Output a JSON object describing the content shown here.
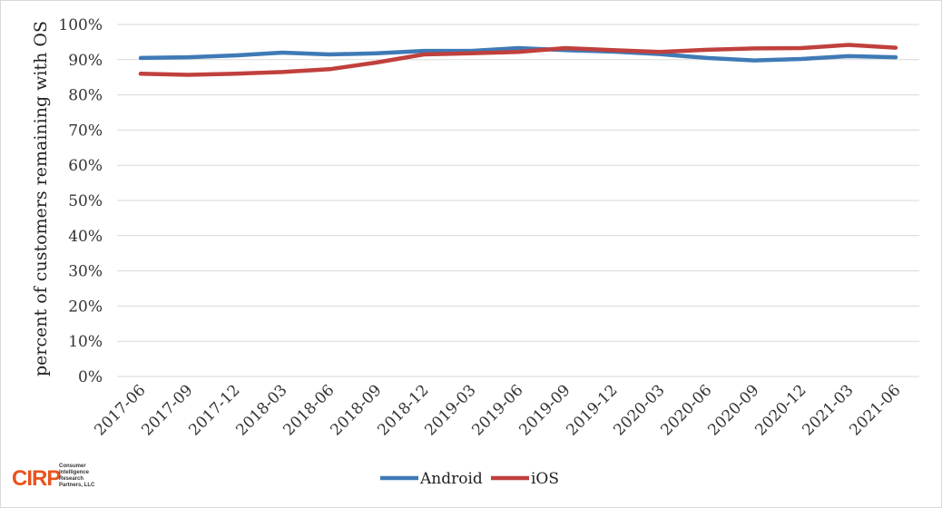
{
  "chart_data": {
    "type": "line",
    "title": "",
    "xlabel": "",
    "ylabel": "percent of customers remaining with OS",
    "ylim": [
      0,
      100
    ],
    "yticks": [
      "100%",
      "90%",
      "80%",
      "70%",
      "60%",
      "50%",
      "40%",
      "30%",
      "20%",
      "10%",
      "0%"
    ],
    "ytick_values": [
      100,
      90,
      80,
      70,
      60,
      50,
      40,
      30,
      20,
      10,
      0
    ],
    "categories": [
      "2017-06",
      "2017-09",
      "2017-12",
      "2018-03",
      "2018-06",
      "2018-09",
      "2018-12",
      "2019-03",
      "2019-06",
      "2019-09",
      "2019-12",
      "2020-03",
      "2020-06",
      "2020-09",
      "2020-12",
      "2021-03",
      "2021-06"
    ],
    "grid": true,
    "legend_position": "bottom-center",
    "series": [
      {
        "name": "Android",
        "color": "#3f7ab6",
        "values": [
          90.5,
          90.7,
          91.2,
          92.0,
          91.5,
          91.8,
          92.5,
          92.5,
          93.3,
          92.7,
          92.3,
          91.6,
          90.5,
          89.8,
          90.2,
          91.0,
          90.7
        ]
      },
      {
        "name": "iOS",
        "color": "#c0403d",
        "values": [
          86.0,
          85.7,
          86.0,
          86.5,
          87.3,
          89.2,
          91.5,
          91.8,
          92.2,
          93.3,
          92.7,
          92.2,
          92.8,
          93.2,
          93.3,
          94.2,
          93.4
        ]
      }
    ]
  },
  "logo": {
    "text": "CIRP",
    "subtext": [
      "Consumer",
      "Intelligence",
      "Research",
      "Partners, LLC"
    ]
  }
}
